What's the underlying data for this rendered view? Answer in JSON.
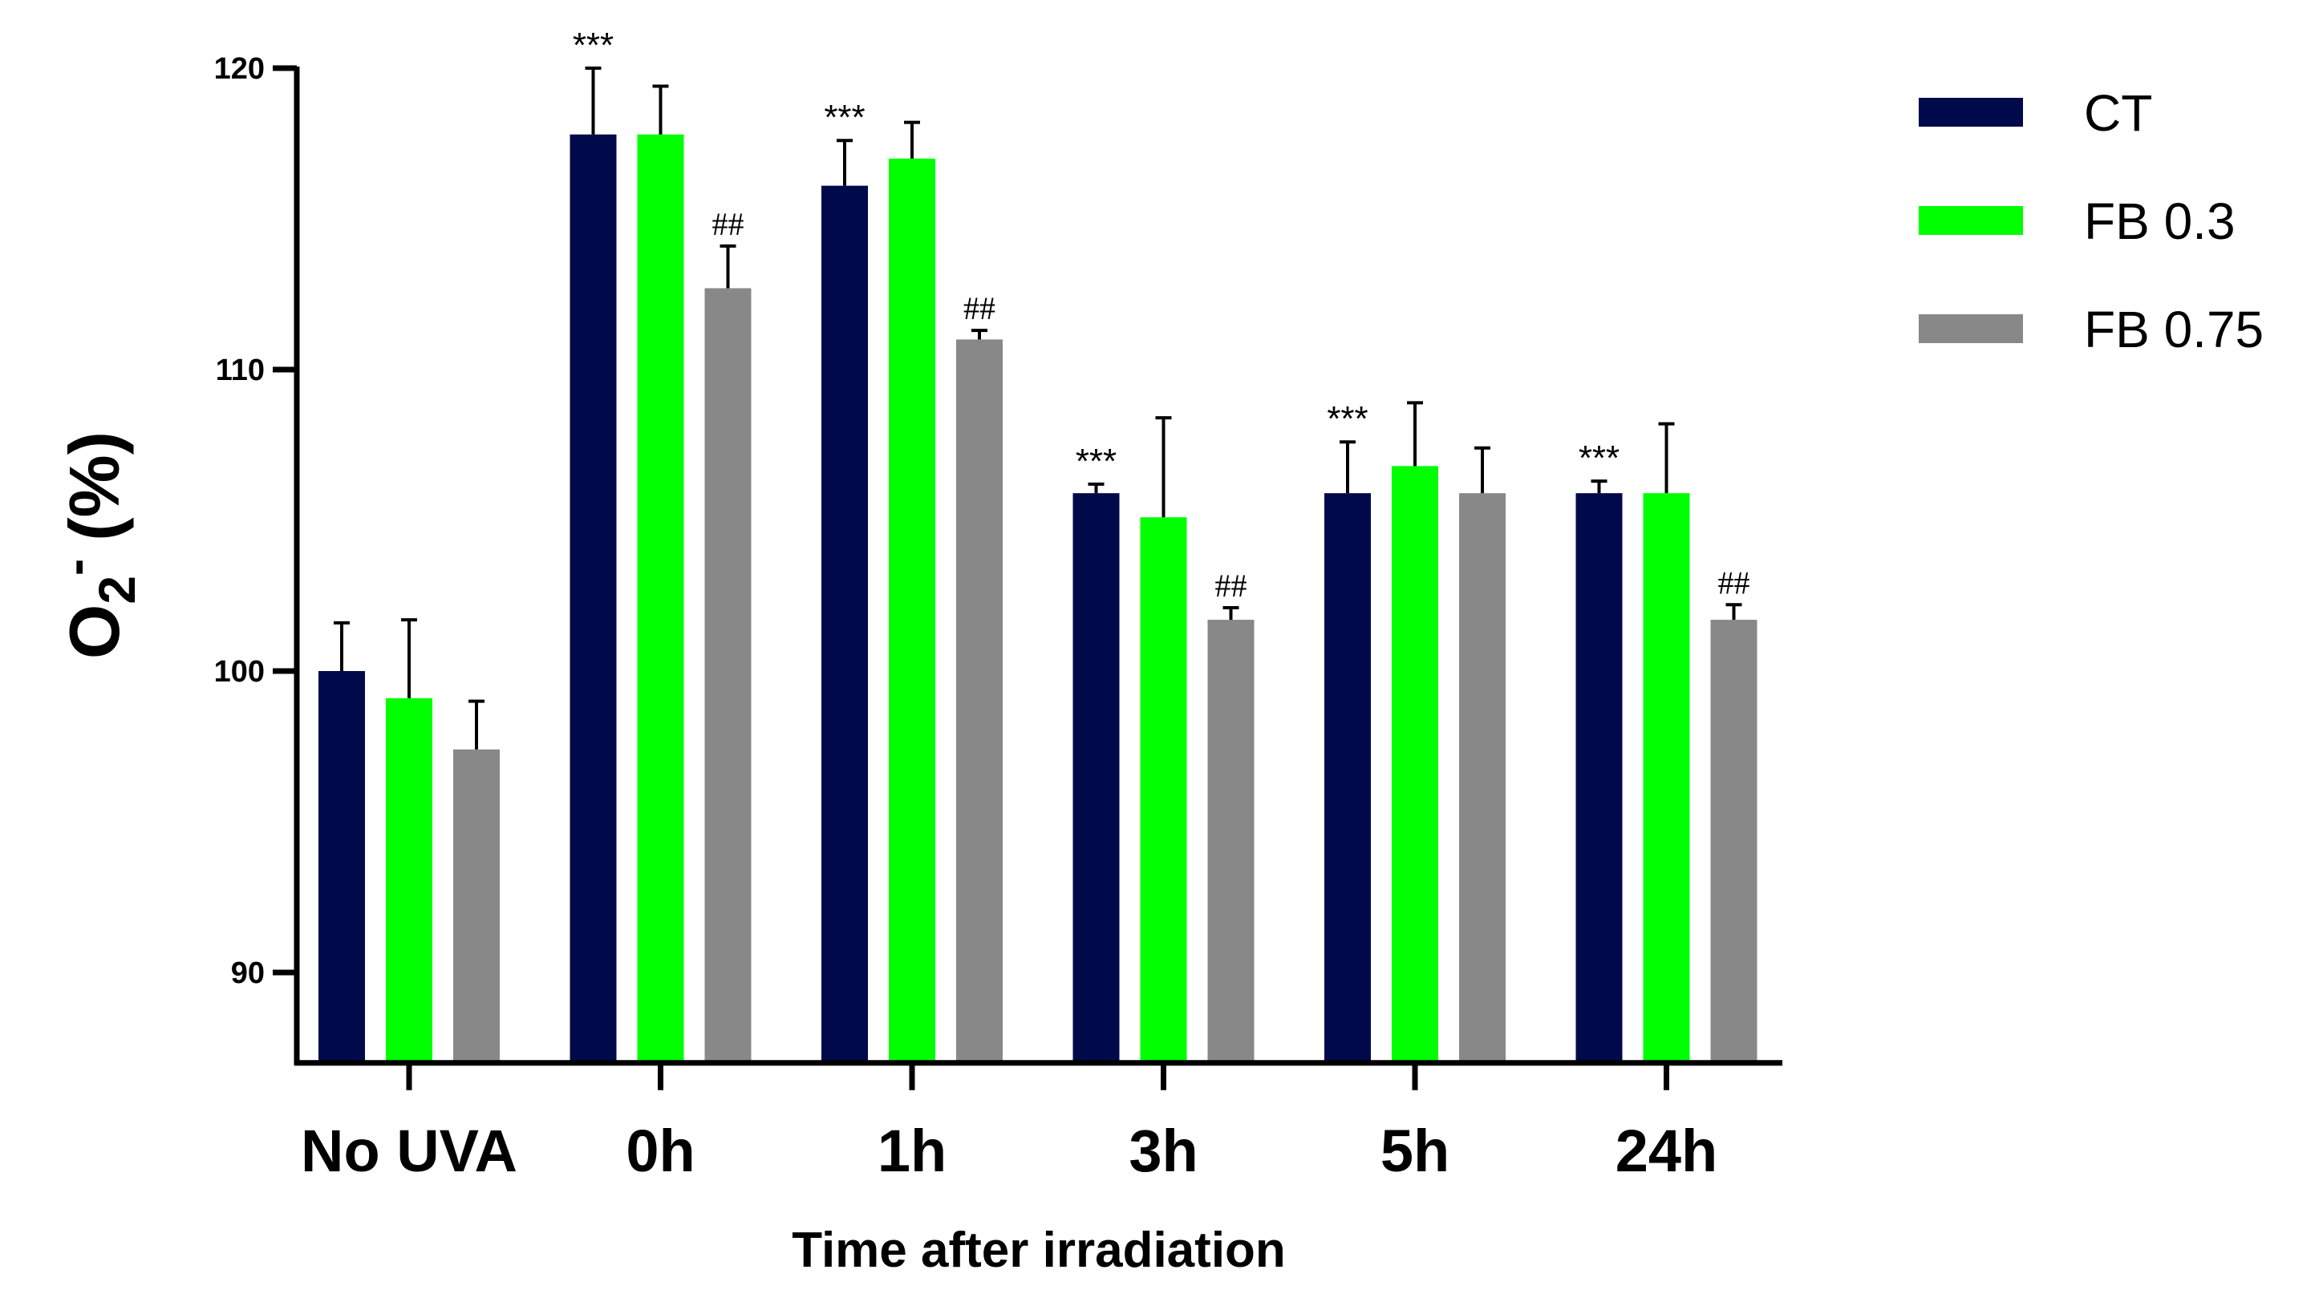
{
  "chart_data": {
    "type": "bar",
    "title": "",
    "xlabel": "Time after irradiation",
    "ylabel": "(%)",
    "ylabel_species": "O",
    "ylabel_subscript": "2",
    "ylabel_superscript": "-",
    "ylim": [
      87,
      120
    ],
    "yticks": [
      90,
      100,
      110,
      120
    ],
    "grid": false,
    "legend_position": "top-right",
    "categories": [
      "No UVA",
      "0h",
      "1h",
      "3h",
      "5h",
      "24h"
    ],
    "series": [
      {
        "name": "CT",
        "color": "#000a4a",
        "values": [
          100.0,
          117.8,
          116.1,
          105.9,
          105.9,
          105.9
        ],
        "errors": [
          1.6,
          2.2,
          1.5,
          0.3,
          1.7,
          0.4
        ],
        "annotations": [
          "",
          "***",
          "***",
          "***",
          "***",
          "***"
        ]
      },
      {
        "name": "FB 0.3",
        "color": "#00ff00",
        "values": [
          99.1,
          117.8,
          117.0,
          105.1,
          106.8,
          105.9
        ],
        "errors": [
          2.6,
          1.6,
          1.2,
          3.3,
          2.1,
          2.3
        ],
        "annotations": [
          "",
          "",
          "",
          "",
          "",
          ""
        ]
      },
      {
        "name": "FB 0.75",
        "color": "#888888",
        "values": [
          97.4,
          112.7,
          111.0,
          101.7,
          105.9,
          101.7
        ],
        "errors": [
          1.6,
          1.4,
          0.3,
          0.4,
          1.5,
          0.5
        ],
        "annotations": [
          "",
          "##",
          "##",
          "##",
          "",
          "##"
        ]
      }
    ]
  }
}
